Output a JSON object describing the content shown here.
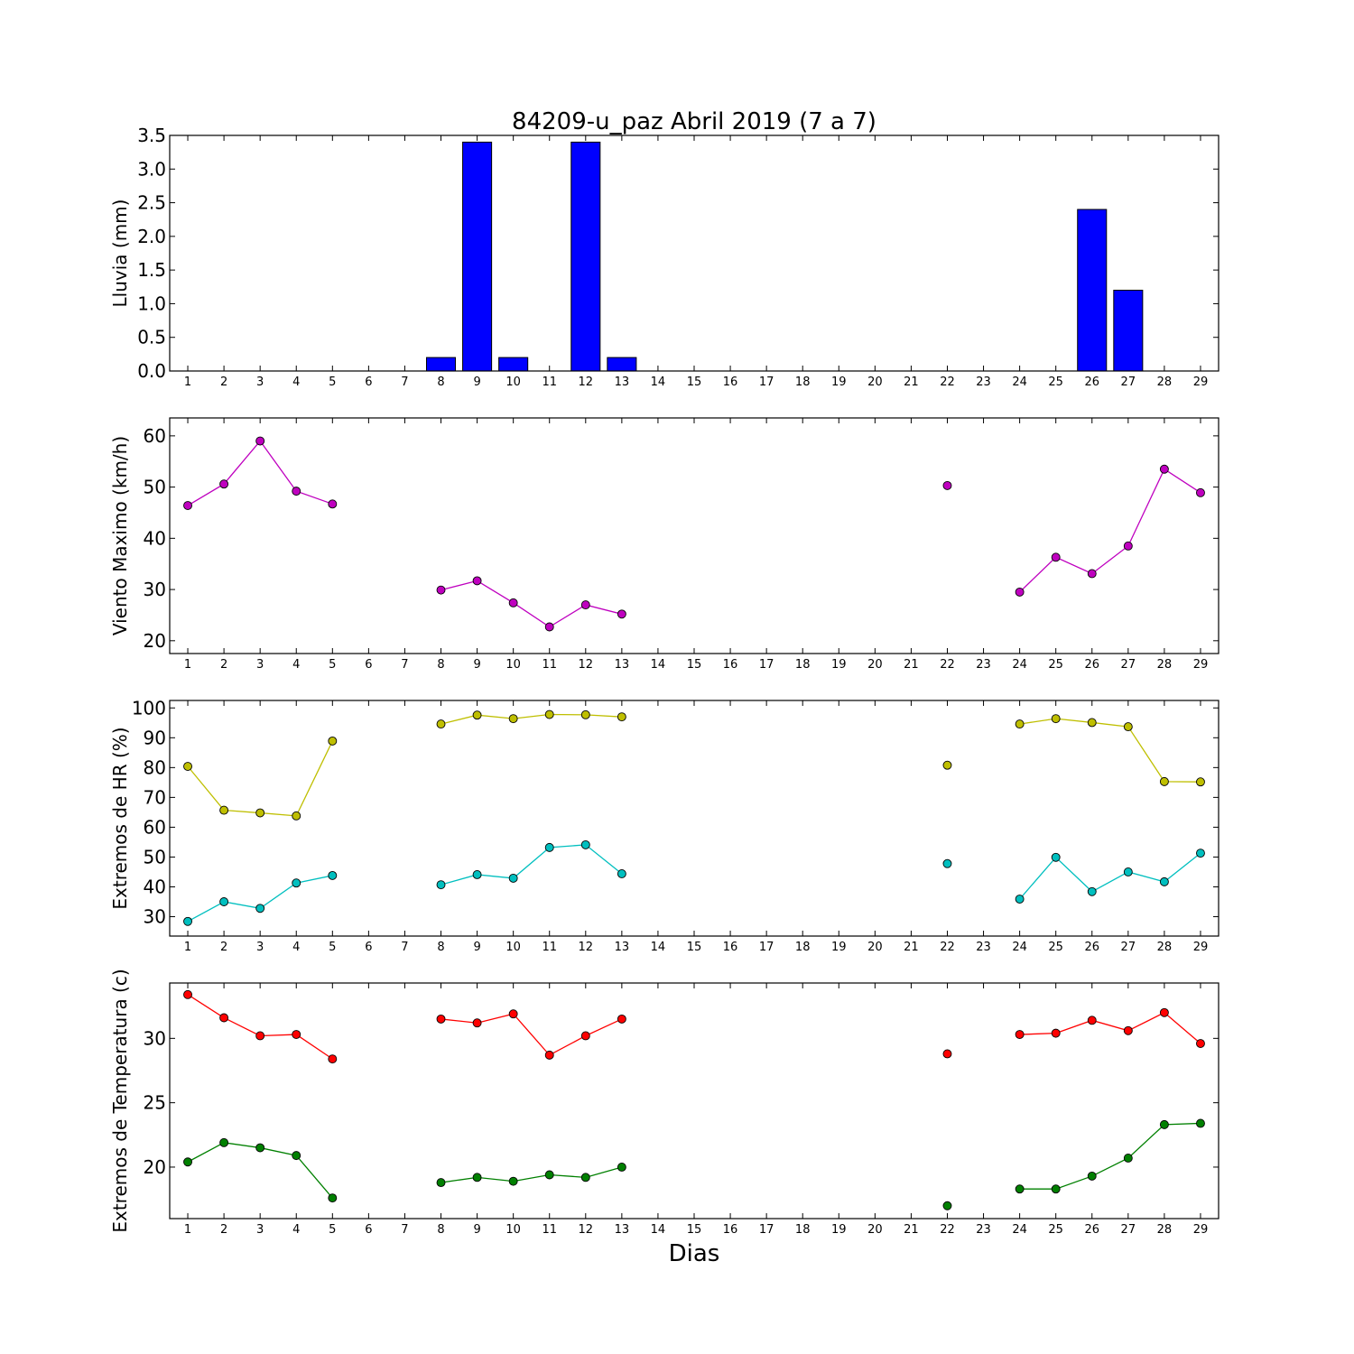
{
  "chart_data": {
    "type": "multi-panel",
    "title": "84209-u_paz Abril 2019  (7 a 7)",
    "xlabel": "Dias",
    "days": [
      1,
      2,
      3,
      4,
      5,
      6,
      7,
      8,
      9,
      10,
      11,
      12,
      13,
      14,
      15,
      16,
      17,
      18,
      19,
      20,
      21,
      22,
      23,
      24,
      25,
      26,
      27,
      28,
      29
    ],
    "panels": [
      {
        "type": "bar",
        "ylabel": "Lluvia (mm)",
        "ylim": [
          0,
          3.5
        ],
        "yticks": [
          0.0,
          0.5,
          1.0,
          1.5,
          2.0,
          2.5,
          3.0,
          3.5
        ],
        "ytick_labels": [
          "0.0",
          "0.5",
          "1.0",
          "1.5",
          "2.0",
          "2.5",
          "3.0",
          "3.5"
        ],
        "series": [
          {
            "color": "#0000ff",
            "values": [
              0,
              0,
              0,
              0,
              0,
              null,
              null,
              0.2,
              3.4,
              0.2,
              0,
              3.4,
              0.2,
              null,
              null,
              null,
              null,
              null,
              null,
              null,
              null,
              0,
              null,
              0,
              0,
              2.4,
              1.2,
              0,
              null
            ]
          }
        ]
      },
      {
        "type": "line",
        "ylabel": "Viento Maximo (km/h)",
        "ylim": [
          17.5,
          63.5
        ],
        "yticks": [
          20,
          30,
          40,
          50,
          60
        ],
        "ytick_labels": [
          "20",
          "30",
          "40",
          "50",
          "60"
        ],
        "series": [
          {
            "color": "#bf00bf",
            "values": [
              46.4,
              50.6,
              59.0,
              49.2,
              46.7,
              null,
              null,
              29.9,
              31.7,
              27.4,
              22.7,
              27.0,
              25.2,
              null,
              null,
              null,
              null,
              null,
              null,
              null,
              null,
              50.3,
              null,
              29.5,
              36.3,
              33.1,
              38.5,
              53.5,
              48.9
            ]
          }
        ]
      },
      {
        "type": "line",
        "ylabel": "Extremos de HR (%)",
        "ylim": [
          23.5,
          102.5
        ],
        "yticks": [
          30,
          40,
          50,
          60,
          70,
          80,
          90,
          100
        ],
        "ytick_labels": [
          "30",
          "40",
          "50",
          "60",
          "70",
          "80",
          "90",
          "100"
        ],
        "series": [
          {
            "color": "#bfbf00",
            "values": [
              80.4,
              65.7,
              64.8,
              63.8,
              88.9,
              null,
              null,
              94.6,
              97.6,
              96.4,
              97.8,
              97.7,
              97.0,
              null,
              null,
              null,
              null,
              null,
              null,
              null,
              null,
              80.8,
              null,
              94.6,
              96.4,
              95.1,
              93.7,
              75.3,
              75.2
            ]
          },
          {
            "color": "#00bfbf",
            "values": [
              28.4,
              35.0,
              32.8,
              41.3,
              43.8,
              null,
              null,
              40.7,
              44.1,
              42.9,
              53.2,
              54.1,
              44.4,
              null,
              null,
              null,
              null,
              null,
              null,
              null,
              null,
              47.8,
              null,
              35.9,
              49.9,
              38.4,
              45.0,
              41.7,
              51.3
            ]
          }
        ]
      },
      {
        "type": "line",
        "ylabel": "Extremos de Temperatura (c)",
        "ylim": [
          16.0,
          34.3
        ],
        "yticks": [
          20,
          25,
          30
        ],
        "ytick_labels": [
          "20",
          "25",
          "30"
        ],
        "series": [
          {
            "color": "#ff0000",
            "values": [
              33.4,
              31.6,
              30.2,
              30.3,
              28.4,
              null,
              null,
              31.5,
              31.2,
              31.9,
              28.7,
              30.2,
              31.5,
              null,
              null,
              null,
              null,
              null,
              null,
              null,
              null,
              28.8,
              null,
              30.3,
              30.4,
              31.4,
              30.6,
              32.0,
              29.6
            ]
          },
          {
            "color": "#008000",
            "values": [
              20.4,
              21.9,
              21.5,
              20.9,
              17.6,
              null,
              null,
              18.8,
              19.2,
              18.9,
              19.4,
              19.2,
              20.0,
              null,
              null,
              null,
              null,
              null,
              null,
              null,
              null,
              17.0,
              null,
              18.3,
              18.3,
              19.3,
              20.7,
              23.3,
              23.4
            ]
          }
        ]
      }
    ]
  }
}
